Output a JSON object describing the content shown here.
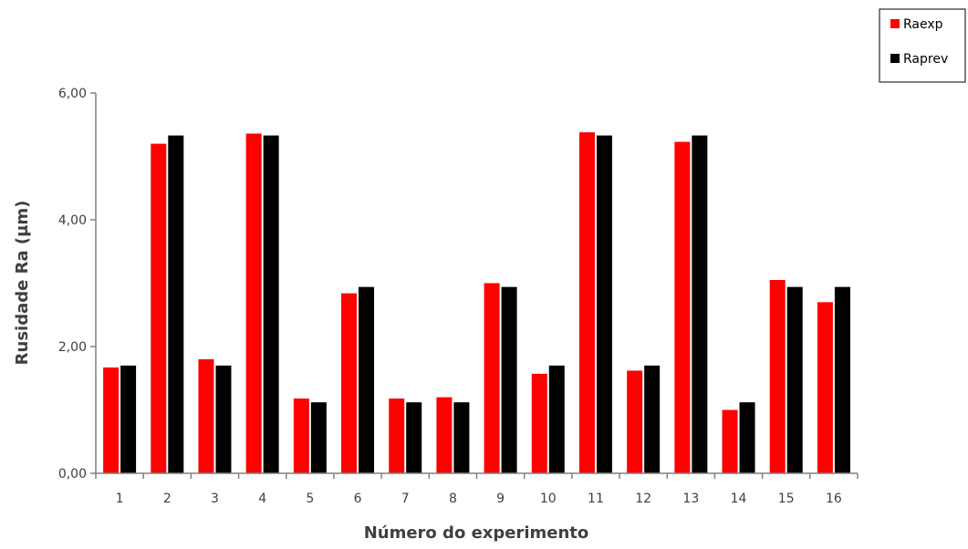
{
  "chart_data": {
    "type": "bar",
    "title": "",
    "xlabel": "Número do experimento",
    "ylabel": "Rusidade Ra (µm)",
    "ylim": [
      0,
      6
    ],
    "yticks": [
      "0,00",
      "2,00",
      "4,00",
      "6,00"
    ],
    "ytick_values": [
      0,
      2,
      4,
      6
    ],
    "categories": [
      "1",
      "2",
      "3",
      "4",
      "5",
      "6",
      "7",
      "8",
      "9",
      "10",
      "11",
      "12",
      "13",
      "14",
      "15",
      "16"
    ],
    "series": [
      {
        "name": "Raexp",
        "color": "#ff0000",
        "values": [
          1.67,
          5.2,
          1.8,
          5.36,
          1.18,
          2.84,
          1.18,
          1.2,
          3.0,
          1.57,
          5.38,
          1.62,
          5.23,
          1.0,
          3.05,
          2.7
        ]
      },
      {
        "name": "Raprev",
        "color": "#000000",
        "values": [
          1.7,
          5.33,
          1.7,
          5.33,
          1.12,
          2.94,
          1.12,
          1.12,
          2.94,
          1.7,
          5.33,
          1.7,
          5.33,
          1.12,
          2.94,
          2.94
        ]
      }
    ],
    "grid": false,
    "legend_position": "top-right"
  }
}
